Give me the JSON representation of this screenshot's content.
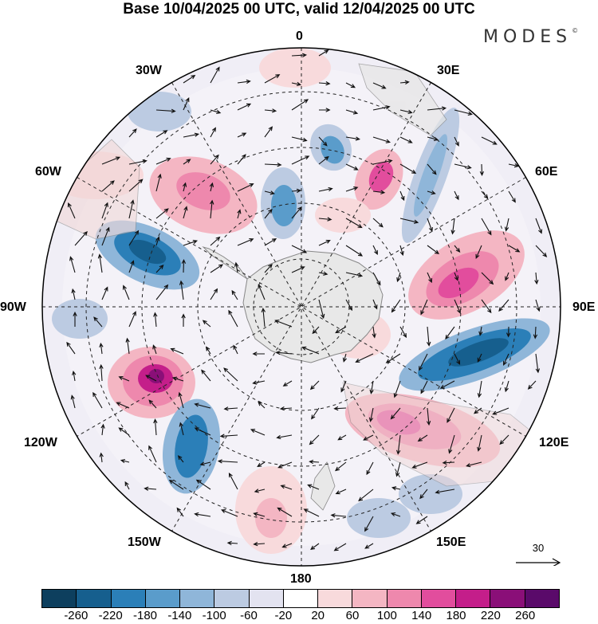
{
  "header": {
    "title": "Base 10/04/2025 00 UTC, valid 12/04/2025 00 UTC",
    "brand": "MODES",
    "brand_mark": "©"
  },
  "map": {
    "projection": "south-polar-stereographic",
    "longitude_labels": {
      "lon_0": "0",
      "lon_30e": "30E",
      "lon_60e": "60E",
      "lon_90e": "90E",
      "lon_120e": "120E",
      "lon_150e": "150E",
      "lon_180": "180",
      "lon_150w": "150W",
      "lon_120w": "120W",
      "lon_90w": "90W",
      "lon_60w": "60W",
      "lon_30w": "30W"
    },
    "reference_vector": "30",
    "colors": {
      "land": "#e8e8e8",
      "coast": "#888888"
    }
  },
  "colorbar": {
    "colors": [
      "#0d3f5e",
      "#165f8e",
      "#2b7fb8",
      "#5a9ccb",
      "#8fb6d9",
      "#bccbe2",
      "#e3e3f0",
      "#ffffff",
      "#f8dadc",
      "#f4b6c3",
      "#ee88ad",
      "#e24d9d",
      "#c41e8a",
      "#8a0f78",
      "#5a0a6a"
    ],
    "ticks": [
      "-260",
      "-220",
      "-180",
      "-140",
      "-100",
      "-60",
      "-20",
      "20",
      "60",
      "100",
      "140",
      "180",
      "220",
      "260"
    ]
  }
}
